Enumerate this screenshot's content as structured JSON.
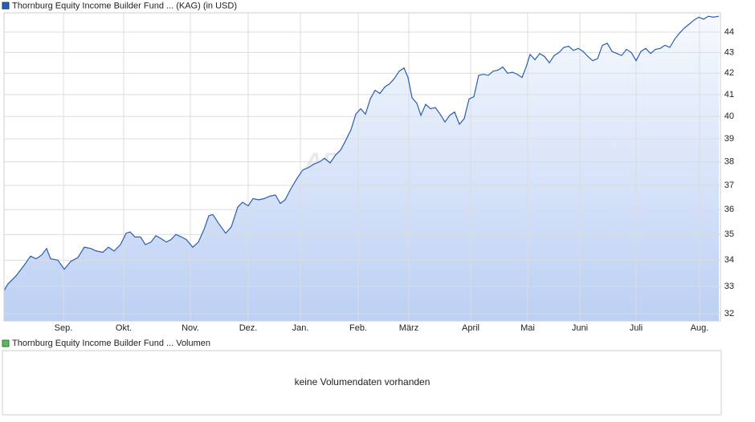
{
  "chart_data": [
    {
      "type": "line",
      "series": [
        {
          "name": "Thornburg Equity Income Builder Fund ... (KAG) (in USD)",
          "color": "#2a5db0",
          "values": [
            32.85,
            33.1,
            33.4,
            33.8,
            34.15,
            34.05,
            34.2,
            34.45,
            34.05,
            34.0,
            33.65,
            33.95,
            34.1,
            34.5,
            34.45,
            34.35,
            34.3,
            34.5,
            34.35,
            34.6,
            35.05,
            35.1,
            34.9,
            34.9,
            34.6,
            34.7,
            34.95,
            34.85,
            34.7,
            34.8,
            35.0,
            34.9,
            34.8,
            34.5,
            34.7,
            35.2,
            35.75,
            35.8,
            35.45,
            35.05,
            35.3,
            36.1,
            36.3,
            36.15,
            36.45,
            36.4,
            36.45,
            36.55,
            36.6,
            36.25,
            36.4,
            36.85,
            37.3,
            37.65,
            37.75,
            37.9,
            38.0,
            38.15,
            37.95,
            38.3,
            38.5,
            38.9,
            39.4,
            40.1,
            40.35,
            40.1,
            40.8,
            41.2,
            41.05,
            41.35,
            41.5,
            41.75,
            42.1,
            42.25,
            41.8,
            40.85,
            40.6,
            40.05,
            40.55,
            40.35,
            40.4,
            40.1,
            39.75,
            40.05,
            40.2,
            39.65,
            39.9,
            40.8,
            40.9,
            41.9,
            41.95,
            41.9,
            42.1,
            42.15,
            42.3,
            42.0,
            42.05,
            41.95,
            41.8,
            42.3,
            42.9,
            42.65,
            42.95,
            42.8,
            42.5,
            42.85,
            43.0,
            43.25,
            43.3,
            43.1,
            43.2,
            43.05,
            42.8,
            42.6,
            42.7,
            43.35,
            43.45,
            43.05,
            42.95,
            42.85,
            43.15,
            43.0,
            42.6,
            43.05,
            43.2,
            42.95,
            43.15,
            43.2,
            43.35,
            43.25,
            43.65,
            43.95,
            44.2,
            44.4,
            44.6,
            44.75,
            44.65,
            44.8,
            44.75,
            44.8
          ]
        }
      ],
      "x": [
        0,
        5,
        15,
        25,
        33,
        40,
        47,
        53,
        58,
        67,
        75,
        83,
        92,
        100,
        108,
        115,
        123,
        130,
        137,
        145,
        152,
        157,
        163,
        170,
        176,
        183,
        189,
        195,
        202,
        208,
        214,
        221,
        227,
        235,
        242,
        249,
        255,
        260,
        267,
        276,
        283,
        291,
        297,
        304,
        310,
        317,
        324,
        331,
        338,
        344,
        350,
        357,
        365,
        372,
        379,
        386,
        393,
        399,
        406,
        413,
        419,
        425,
        432,
        438,
        444,
        450,
        456,
        462,
        468,
        474,
        480,
        486,
        492,
        498,
        503,
        508,
        514,
        519,
        525,
        531,
        537,
        543,
        549,
        555,
        561,
        567,
        573,
        579,
        585,
        591,
        597,
        603,
        609,
        615,
        621,
        627,
        633,
        639,
        645,
        650,
        655,
        661,
        667,
        673,
        679,
        685,
        691,
        697,
        703,
        709,
        715,
        721,
        727,
        733,
        739,
        745,
        751,
        757,
        763,
        769,
        775,
        781,
        787,
        793,
        799,
        805,
        811,
        817,
        823,
        829,
        835,
        841,
        847,
        853,
        859,
        865,
        871,
        877,
        883,
        890
      ],
      "xlim": [
        0,
        892
      ],
      "xticks": [
        {
          "value": 74,
          "label": "Sep."
        },
        {
          "value": 149,
          "label": "Okt."
        },
        {
          "value": 232,
          "label": "Nov."
        },
        {
          "value": 304,
          "label": "Dez."
        },
        {
          "value": 369,
          "label": "Jan."
        },
        {
          "value": 441,
          "label": "Feb."
        },
        {
          "value": 504,
          "label": "März"
        },
        {
          "value": 581,
          "label": "April"
        },
        {
          "value": 652,
          "label": "Mai"
        },
        {
          "value": 717,
          "label": "Juni"
        },
        {
          "value": 787,
          "label": "Juli"
        },
        {
          "value": 866,
          "label": "Aug."
        }
      ],
      "ylim": [
        31.74,
        44.97
      ],
      "yticks": [
        32,
        33,
        34,
        35,
        36,
        37,
        38,
        39,
        40,
        41,
        42,
        43,
        44
      ],
      "log_scale": true,
      "grid": true,
      "watermark": "ARIVA.DE"
    },
    {
      "type": "bar",
      "series": [
        {
          "name": "Thornburg Equity Income Builder Fund ... Volumen",
          "color": "#5cb85c",
          "values": []
        }
      ],
      "message": "keine Volumendaten vorhanden"
    }
  ]
}
